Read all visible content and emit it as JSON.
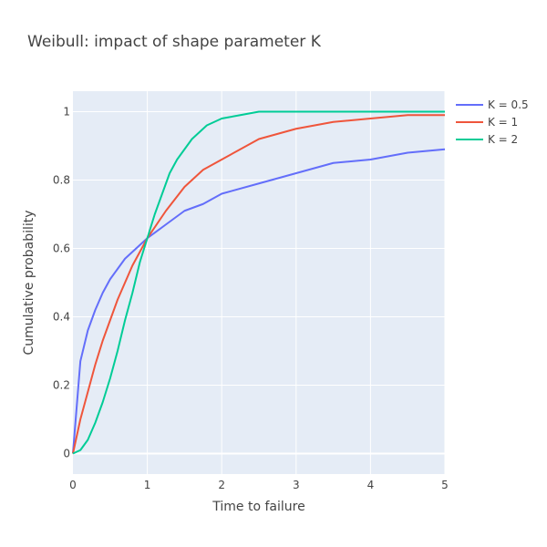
{
  "chart_data": {
    "type": "line",
    "title": "Weibull: impact of shape parameter K",
    "xlabel": "Time to failure",
    "ylabel": "Cumulative probability",
    "xlim": [
      0,
      5
    ],
    "ylim": [
      -0.06,
      1.06
    ],
    "x_ticks": [
      0,
      1,
      2,
      3,
      4,
      5
    ],
    "x_tick_labels": [
      "0",
      "1",
      "2",
      "3",
      "4",
      "5"
    ],
    "y_ticks": [
      0,
      0.2,
      0.4,
      0.6,
      0.8,
      1
    ],
    "y_tick_labels": [
      "0",
      "0.2",
      "0.4",
      "0.6",
      "0.8",
      "1"
    ],
    "grid": true,
    "legend_position": "top-right",
    "background_color": "#E5ECF6",
    "series": [
      {
        "name": "K = 0.5",
        "color": "#636EFA",
        "x": [
          0,
          0.1,
          0.2,
          0.3,
          0.4,
          0.5,
          0.6,
          0.7,
          0.8,
          0.9,
          1.0,
          1.25,
          1.5,
          1.75,
          2.0,
          2.5,
          3.0,
          3.5,
          4.0,
          4.5,
          5.0
        ],
        "y": [
          0,
          0.27,
          0.36,
          0.42,
          0.47,
          0.51,
          0.54,
          0.57,
          0.59,
          0.61,
          0.63,
          0.67,
          0.71,
          0.73,
          0.76,
          0.79,
          0.82,
          0.85,
          0.86,
          0.88,
          0.89
        ]
      },
      {
        "name": "K = 1",
        "color": "#EF553B",
        "x": [
          0,
          0.1,
          0.2,
          0.3,
          0.4,
          0.5,
          0.6,
          0.7,
          0.8,
          0.9,
          1.0,
          1.25,
          1.5,
          1.75,
          2.0,
          2.5,
          3.0,
          3.5,
          4.0,
          4.5,
          5.0
        ],
        "y": [
          0,
          0.1,
          0.18,
          0.26,
          0.33,
          0.39,
          0.45,
          0.5,
          0.55,
          0.59,
          0.63,
          0.71,
          0.78,
          0.83,
          0.86,
          0.92,
          0.95,
          0.97,
          0.98,
          0.99,
          0.99
        ]
      },
      {
        "name": "K = 2",
        "color": "#00CC96",
        "x": [
          0,
          0.1,
          0.2,
          0.3,
          0.4,
          0.5,
          0.6,
          0.7,
          0.8,
          0.9,
          1.0,
          1.1,
          1.2,
          1.3,
          1.4,
          1.5,
          1.6,
          1.7,
          1.8,
          1.9,
          2.0,
          2.25,
          2.5,
          3.0,
          4.0,
          5.0
        ],
        "y": [
          0,
          0.01,
          0.04,
          0.09,
          0.15,
          0.22,
          0.3,
          0.39,
          0.47,
          0.56,
          0.63,
          0.7,
          0.76,
          0.82,
          0.86,
          0.89,
          0.92,
          0.94,
          0.96,
          0.97,
          0.98,
          0.99,
          1.0,
          1.0,
          1.0,
          1.0
        ]
      }
    ]
  }
}
